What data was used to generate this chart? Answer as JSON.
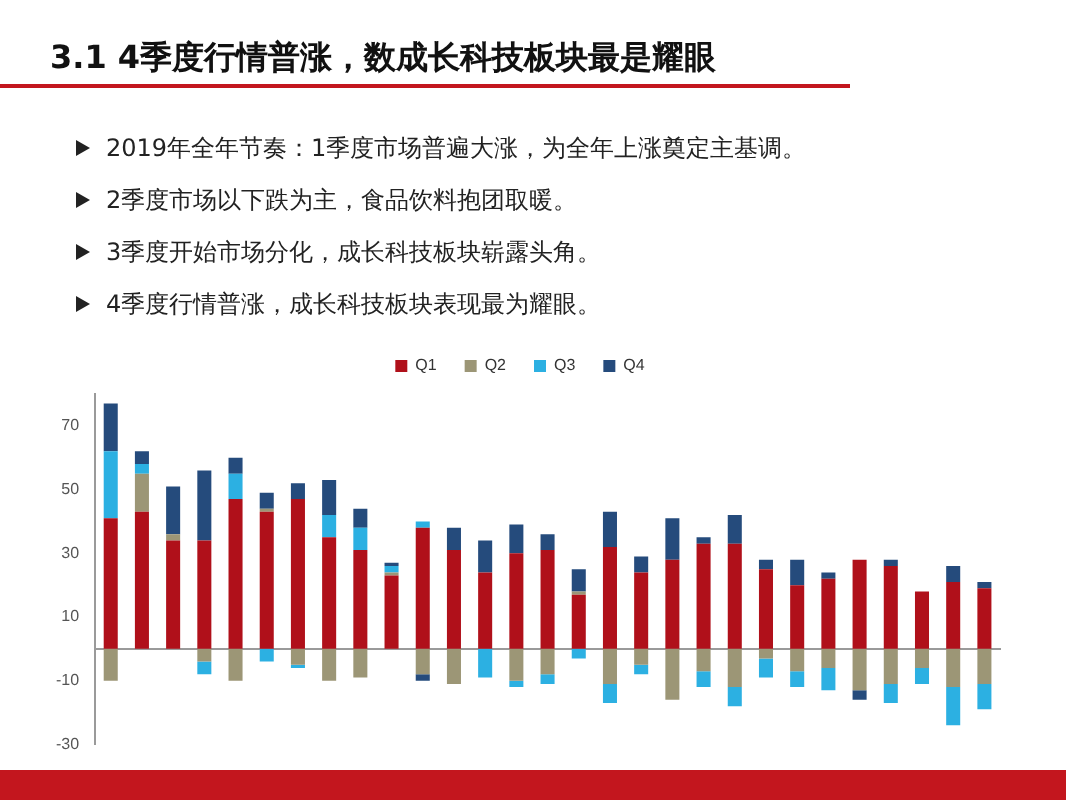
{
  "chart_data": {
    "type": "bar",
    "title": "3.1 4季度行情普涨，数成长科技板块最是耀眼",
    "annotations": [
      "2019年全年节奏：1季度市场普遍大涨，为全年上涨奠定主基调。",
      "2季度市场以下跌为主，食品饮料抱团取暖。",
      "3季度开始市场分化，成长科技板块崭露头角。",
      "4季度行情普涨，成长科技板块表现最为耀眼。"
    ],
    "categories": [
      null,
      null,
      null,
      null,
      null,
      null,
      null,
      null,
      null,
      null,
      null,
      null,
      null,
      null,
      null,
      null,
      null,
      null,
      null,
      null,
      null,
      null,
      null,
      null,
      null,
      null,
      null,
      null,
      null
    ],
    "series": [
      {
        "name": "Q1",
        "color": "#b0101a",
        "values": [
          41,
          43,
          34,
          34,
          47,
          43,
          47,
          35,
          31,
          23,
          38,
          31,
          24,
          30,
          31,
          17,
          32,
          24,
          28,
          33,
          33,
          25,
          20,
          22,
          28,
          26,
          18,
          21,
          19
        ]
      },
      {
        "name": "Q2",
        "color": "#9c9676",
        "values": [
          -10,
          12,
          2,
          -4,
          -10,
          1,
          -5,
          -10,
          -9,
          1,
          -8,
          -11,
          0,
          -10,
          -8,
          1,
          -11,
          -5,
          -16,
          -7,
          -12,
          -3,
          -7,
          -6,
          -13,
          -11,
          -6,
          -12,
          -11
        ]
      },
      {
        "name": "Q3",
        "color": "#2cb0e2",
        "values": [
          21,
          3,
          0,
          -4,
          8,
          -4,
          -1,
          7,
          7,
          2,
          2,
          0,
          -9,
          -2,
          -3,
          -3,
          -6,
          -3,
          0,
          -5,
          -6,
          -6,
          -5,
          -7,
          0,
          -6,
          -5,
          -12,
          -8
        ]
      },
      {
        "name": "Q4",
        "color": "#254b7c",
        "values": [
          15,
          4,
          15,
          22,
          5,
          5,
          5,
          11,
          6,
          1,
          -2,
          7,
          10,
          9,
          5,
          7,
          11,
          5,
          13,
          2,
          9,
          3,
          8,
          2,
          -3,
          2,
          0,
          5,
          2
        ]
      }
    ],
    "stacked": true,
    "ylim": [
      -30,
      80
    ],
    "yticks": [
      -30,
      -10,
      10,
      30,
      50,
      70
    ],
    "legend": "top"
  }
}
